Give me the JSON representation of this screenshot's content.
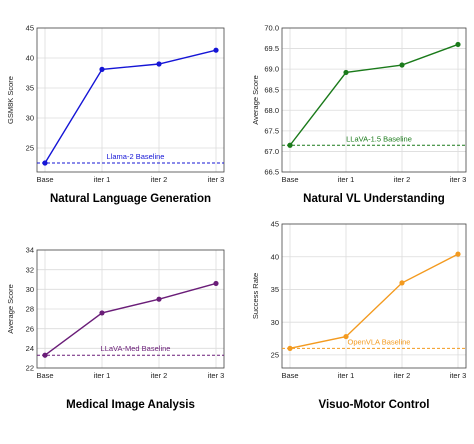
{
  "chart_data": [
    {
      "type": "line",
      "title": "Natural Language Generation",
      "ylabel": "GSM8K Score",
      "categories": [
        "Base",
        "iter 1",
        "iter 2",
        "iter 3"
      ],
      "series": [
        {
          "values": [
            22.5,
            38.1,
            39.0,
            41.3
          ]
        }
      ],
      "baseline": {
        "label": "Llama-2 Baseline",
        "value": 22.5
      },
      "ylim": [
        21,
        45
      ],
      "yticks": [
        25,
        30,
        35,
        40,
        45
      ],
      "grid": true,
      "color": "#1515d6"
    },
    {
      "type": "line",
      "title": "Natural VL Understanding",
      "ylabel": "Average Score",
      "categories": [
        "Base",
        "iter 1",
        "iter 2",
        "iter 3"
      ],
      "series": [
        {
          "values": [
            67.15,
            68.92,
            69.1,
            69.6
          ]
        }
      ],
      "baseline": {
        "label": "LLaVA-1.5 Baseline",
        "value": 67.15
      },
      "ylim": [
        66.5,
        70.0
      ],
      "yticks": [
        66.5,
        67.0,
        67.5,
        68.0,
        68.5,
        69.0,
        69.5,
        70.0
      ],
      "grid": true,
      "color": "#1a7a1a"
    },
    {
      "type": "line",
      "title": "Medical Image Analysis",
      "ylabel": "Average Score",
      "categories": [
        "Base",
        "iter 1",
        "iter 2",
        "iter 3"
      ],
      "series": [
        {
          "values": [
            23.3,
            27.6,
            29.0,
            30.6
          ]
        }
      ],
      "baseline": {
        "label": "LLaVA-Med Baseline",
        "value": 23.3
      },
      "ylim": [
        22,
        34
      ],
      "yticks": [
        22,
        24,
        26,
        28,
        30,
        32,
        34
      ],
      "grid": true,
      "color": "#6a1d78"
    },
    {
      "type": "line",
      "title": "Visuo-Motor Control",
      "ylabel": "Success Rate",
      "categories": [
        "Base",
        "iter 1",
        "iter 2",
        "iter 3"
      ],
      "series": [
        {
          "values": [
            26.0,
            27.8,
            36.0,
            40.4
          ]
        }
      ],
      "baseline": {
        "label": "OpenVLA Baseline",
        "value": 26.0
      },
      "ylim": [
        23,
        45
      ],
      "yticks": [
        25,
        30,
        35,
        40,
        45
      ],
      "grid": true,
      "color": "#f39a1f"
    }
  ]
}
